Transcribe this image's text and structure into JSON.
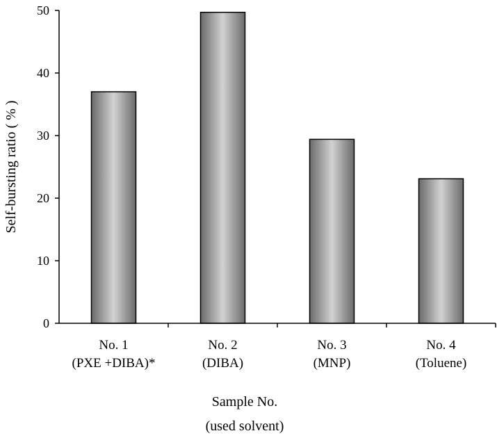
{
  "chart_data": {
    "type": "bar",
    "categories": [
      "No. 1",
      "No. 2",
      "No. 3",
      "No. 4"
    ],
    "category_sublabels": [
      "(PXE +DIBA)*",
      "(DIBA)",
      "(MNP)",
      "(Toluene)"
    ],
    "values": [
      37,
      49.7,
      29.4,
      23.1
    ],
    "xlabel": "Sample No.",
    "xlabel_line2": "(used solvent)",
    "ylabel": "Self-bursting ratio ( % )",
    "ylim": [
      0,
      50
    ],
    "yticks": [
      0,
      10,
      20,
      30,
      40,
      50
    ],
    "grid": false,
    "legend": "none",
    "bar_colors": {
      "edge": "#6a6a6a",
      "center": "#d2d2d2"
    }
  }
}
